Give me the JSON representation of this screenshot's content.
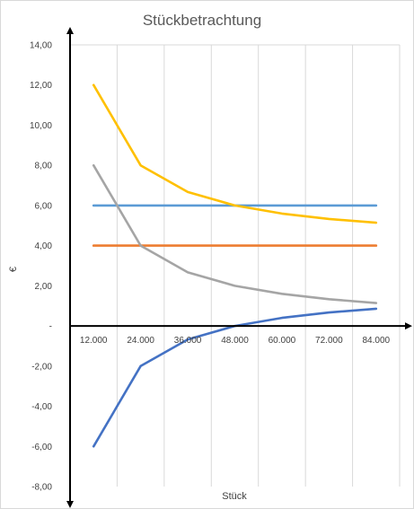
{
  "chart_data": {
    "type": "line",
    "title": "Stückbetrachtung",
    "xlabel": "Stück",
    "ylabel": "€",
    "categories": [
      "12.000",
      "24.000",
      "36.000",
      "48.000",
      "60.000",
      "72.000",
      "84.000"
    ],
    "y_tick_labels": [
      "14,00",
      "12,00",
      "10,00",
      "8,00",
      "6,00",
      "4,00",
      "2,00",
      "-",
      "-2,00",
      "-4,00",
      "-6,00",
      "-8,00"
    ],
    "ylim": [
      -8,
      14
    ],
    "grid": "vertical",
    "legend": "none",
    "series": [
      {
        "color": "#5B9BD5",
        "values": [
          6.0,
          6.0,
          6.0,
          6.0,
          6.0,
          6.0,
          6.0
        ]
      },
      {
        "color": "#ED7D31",
        "values": [
          4.0,
          4.0,
          4.0,
          4.0,
          4.0,
          4.0,
          4.0
        ]
      },
      {
        "color": "#FFC000",
        "values": [
          12.0,
          8.0,
          6.67,
          6.0,
          5.6,
          5.33,
          5.14
        ]
      },
      {
        "color": "#A5A5A5",
        "values": [
          8.0,
          4.0,
          2.67,
          2.0,
          1.6,
          1.33,
          1.14
        ]
      },
      {
        "color": "#4472C4",
        "values": [
          -6.0,
          -2.0,
          -0.67,
          0.0,
          0.4,
          0.67,
          0.86
        ]
      }
    ]
  }
}
